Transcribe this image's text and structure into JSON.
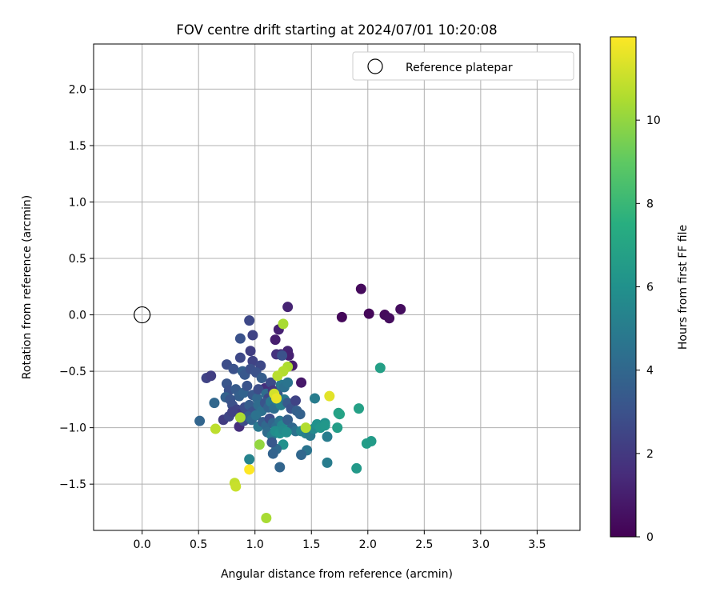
{
  "chart_data": {
    "type": "scatter",
    "title": "FOV centre drift starting at 2024/07/01 10:20:08",
    "xlabel": "Angular distance from reference (arcmin)",
    "ylabel": "Rotation from reference (arcmin)",
    "xlim": [
      -0.43,
      3.88
    ],
    "ylim": [
      -1.91,
      2.4
    ],
    "xticks": [
      "0.0",
      "0.5",
      "1.0",
      "1.5",
      "2.0",
      "2.5",
      "3.0",
      "3.5"
    ],
    "xtick_values": [
      0,
      0.5,
      1,
      1.5,
      2,
      2.5,
      3,
      3.5
    ],
    "yticks": [
      "−1.5",
      "−1.0",
      "−0.5",
      "0.0",
      "0.5",
      "1.0",
      "1.5",
      "2.0"
    ],
    "ytick_values": [
      -1.5,
      -1,
      -0.5,
      0,
      0.5,
      1,
      1.5,
      2
    ],
    "grid": true,
    "legend": {
      "placement": "top-right",
      "label": "Reference platepar"
    },
    "reference_point": {
      "x": 0.0,
      "y": 0.0
    },
    "colorbar": {
      "label": "Hours from first FF file",
      "range": [
        0,
        12
      ],
      "ticks": [
        "0",
        "2",
        "4",
        "6",
        "8",
        "10"
      ],
      "tick_values": [
        0,
        2,
        4,
        6,
        8,
        10
      ],
      "colormap": "viridis"
    },
    "points": [
      {
        "x": 1.94,
        "y": 0.23,
        "c": 0.3
      },
      {
        "x": 1.77,
        "y": -0.02,
        "c": 0.2
      },
      {
        "x": 2.01,
        "y": 0.01,
        "c": 0.2
      },
      {
        "x": 2.15,
        "y": 0.0,
        "c": 0.3
      },
      {
        "x": 2.19,
        "y": -0.03,
        "c": 0.4
      },
      {
        "x": 2.29,
        "y": 0.05,
        "c": 0.4
      },
      {
        "x": 1.29,
        "y": 0.07,
        "c": 1.2
      },
      {
        "x": 0.95,
        "y": -0.05,
        "c": 2.6
      },
      {
        "x": 0.98,
        "y": -0.18,
        "c": 2.4
      },
      {
        "x": 1.21,
        "y": -0.13,
        "c": 1.1
      },
      {
        "x": 1.18,
        "y": -0.22,
        "c": 1.0
      },
      {
        "x": 0.87,
        "y": -0.21,
        "c": 3.0
      },
      {
        "x": 0.96,
        "y": -0.32,
        "c": 2.2
      },
      {
        "x": 1.23,
        "y": -0.35,
        "c": 1.4
      },
      {
        "x": 1.29,
        "y": -0.32,
        "c": 1.2
      },
      {
        "x": 1.3,
        "y": -0.36,
        "c": 1.1
      },
      {
        "x": 1.33,
        "y": -0.45,
        "c": 0.9
      },
      {
        "x": 1.41,
        "y": -0.6,
        "c": 0.8
      },
      {
        "x": 0.87,
        "y": -0.38,
        "c": 2.6
      },
      {
        "x": 0.98,
        "y": -0.41,
        "c": 2.4
      },
      {
        "x": 1.05,
        "y": -0.45,
        "c": 2.6
      },
      {
        "x": 1.19,
        "y": -0.35,
        "c": 1.8
      },
      {
        "x": 1.24,
        "y": -0.36,
        "c": 3.0
      },
      {
        "x": 0.57,
        "y": -0.56,
        "c": 2.4
      },
      {
        "x": 0.61,
        "y": -0.54,
        "c": 2.2
      },
      {
        "x": 0.75,
        "y": -0.44,
        "c": 2.8
      },
      {
        "x": 0.81,
        "y": -0.48,
        "c": 3.0
      },
      {
        "x": 0.89,
        "y": -0.5,
        "c": 3.6
      },
      {
        "x": 0.91,
        "y": -0.53,
        "c": 3.3
      },
      {
        "x": 0.96,
        "y": -0.48,
        "c": 2.9
      },
      {
        "x": 1.01,
        "y": -0.51,
        "c": 3.0
      },
      {
        "x": 1.06,
        "y": -0.56,
        "c": 3.5
      },
      {
        "x": 1.09,
        "y": -0.65,
        "c": 1.6
      },
      {
        "x": 1.14,
        "y": -0.6,
        "c": 2.7
      },
      {
        "x": 0.75,
        "y": -0.61,
        "c": 3.2
      },
      {
        "x": 0.77,
        "y": -0.67,
        "c": 3.0
      },
      {
        "x": 0.83,
        "y": -0.66,
        "c": 3.4
      },
      {
        "x": 0.86,
        "y": -0.72,
        "c": 3.6
      },
      {
        "x": 0.9,
        "y": -0.69,
        "c": 3.8
      },
      {
        "x": 0.93,
        "y": -0.63,
        "c": 3.1
      },
      {
        "x": 0.98,
        "y": -0.71,
        "c": 3.3
      },
      {
        "x": 1.02,
        "y": -0.74,
        "c": 4.0
      },
      {
        "x": 1.03,
        "y": -0.66,
        "c": 2.8
      },
      {
        "x": 1.1,
        "y": -0.7,
        "c": 4.2
      },
      {
        "x": 1.12,
        "y": -0.74,
        "c": 2.6
      },
      {
        "x": 1.16,
        "y": -0.67,
        "c": 1.9
      },
      {
        "x": 1.2,
        "y": -0.7,
        "c": 3.5
      },
      {
        "x": 1.23,
        "y": -0.62,
        "c": 4.8
      },
      {
        "x": 1.26,
        "y": -0.64,
        "c": 4.4
      },
      {
        "x": 1.29,
        "y": -0.6,
        "c": 4.6
      },
      {
        "x": 0.74,
        "y": -0.73,
        "c": 3.7
      },
      {
        "x": 0.78,
        "y": -0.75,
        "c": 3.2
      },
      {
        "x": 0.8,
        "y": -0.8,
        "c": 2.9
      },
      {
        "x": 0.84,
        "y": -0.84,
        "c": 2.4
      },
      {
        "x": 0.87,
        "y": -0.88,
        "c": 1.9
      },
      {
        "x": 0.91,
        "y": -0.82,
        "c": 2.8
      },
      {
        "x": 0.95,
        "y": -0.8,
        "c": 3.5
      },
      {
        "x": 0.98,
        "y": -0.86,
        "c": 3.0
      },
      {
        "x": 1.03,
        "y": -0.8,
        "c": 4.2
      },
      {
        "x": 1.06,
        "y": -0.85,
        "c": 4.4
      },
      {
        "x": 1.09,
        "y": -0.78,
        "c": 3.1
      },
      {
        "x": 1.12,
        "y": -0.82,
        "c": 3.8
      },
      {
        "x": 1.14,
        "y": -0.77,
        "c": 4.7
      },
      {
        "x": 1.17,
        "y": -0.83,
        "c": 4.3
      },
      {
        "x": 1.2,
        "y": -0.76,
        "c": 5.0
      },
      {
        "x": 1.23,
        "y": -0.8,
        "c": 5.2
      },
      {
        "x": 1.26,
        "y": -0.75,
        "c": 4.9
      },
      {
        "x": 1.29,
        "y": -0.78,
        "c": 3.4
      },
      {
        "x": 1.32,
        "y": -0.83,
        "c": 3.0
      },
      {
        "x": 1.36,
        "y": -0.76,
        "c": 2.4
      },
      {
        "x": 1.37,
        "y": -0.85,
        "c": 3.6
      },
      {
        "x": 1.4,
        "y": -0.88,
        "c": 3.7
      },
      {
        "x": 0.64,
        "y": -0.78,
        "c": 4.0
      },
      {
        "x": 0.72,
        "y": -0.93,
        "c": 2.1
      },
      {
        "x": 0.77,
        "y": -0.9,
        "c": 2.5
      },
      {
        "x": 0.8,
        "y": -0.86,
        "c": 2.3
      },
      {
        "x": 0.86,
        "y": -0.99,
        "c": 1.6
      },
      {
        "x": 0.9,
        "y": -0.94,
        "c": 2.7
      },
      {
        "x": 0.94,
        "y": -0.9,
        "c": 3.4
      },
      {
        "x": 0.97,
        "y": -0.93,
        "c": 4.0
      },
      {
        "x": 1.01,
        "y": -0.89,
        "c": 4.5
      },
      {
        "x": 1.03,
        "y": -0.99,
        "c": 4.8
      },
      {
        "x": 1.07,
        "y": -0.95,
        "c": 3.5
      },
      {
        "x": 1.1,
        "y": -0.98,
        "c": 4.1
      },
      {
        "x": 1.13,
        "y": -0.92,
        "c": 2.8
      },
      {
        "x": 1.16,
        "y": -0.96,
        "c": 3.9
      },
      {
        "x": 1.19,
        "y": -0.99,
        "c": 4.3
      },
      {
        "x": 1.22,
        "y": -0.94,
        "c": 4.6
      },
      {
        "x": 1.24,
        "y": -0.98,
        "c": 5.5
      },
      {
        "x": 1.27,
        "y": -1.0,
        "c": 5.6
      },
      {
        "x": 1.29,
        "y": -0.93,
        "c": 3.6
      },
      {
        "x": 1.33,
        "y": -1.0,
        "c": 4.0
      },
      {
        "x": 1.36,
        "y": -1.03,
        "c": 4.5
      },
      {
        "x": 0.51,
        "y": -0.94,
        "c": 3.9
      },
      {
        "x": 1.11,
        "y": -1.04,
        "c": 4.2
      },
      {
        "x": 1.15,
        "y": -1.07,
        "c": 5.0
      },
      {
        "x": 1.18,
        "y": -1.03,
        "c": 5.8
      },
      {
        "x": 1.22,
        "y": -1.05,
        "c": 6.0
      },
      {
        "x": 1.25,
        "y": -1.02,
        "c": 5.7
      },
      {
        "x": 1.28,
        "y": -1.04,
        "c": 5.9
      },
      {
        "x": 1.41,
        "y": -1.03,
        "c": 5.4
      },
      {
        "x": 1.45,
        "y": -1.05,
        "c": 5.2
      },
      {
        "x": 1.49,
        "y": -1.07,
        "c": 4.9
      },
      {
        "x": 1.52,
        "y": -1.01,
        "c": 5.6
      },
      {
        "x": 1.55,
        "y": -0.97,
        "c": 6.0
      },
      {
        "x": 1.58,
        "y": -1.0,
        "c": 6.2
      },
      {
        "x": 1.62,
        "y": -0.96,
        "c": 6.0
      },
      {
        "x": 1.64,
        "y": -1.08,
        "c": 5.0
      },
      {
        "x": 1.62,
        "y": -0.98,
        "c": 6.3
      },
      {
        "x": 1.53,
        "y": -0.74,
        "c": 5.0
      },
      {
        "x": 1.73,
        "y": -1.0,
        "c": 6.6
      },
      {
        "x": 1.74,
        "y": -0.87,
        "c": 6.8
      },
      {
        "x": 1.75,
        "y": -0.88,
        "c": 6.9
      },
      {
        "x": 1.92,
        "y": -0.83,
        "c": 6.8
      },
      {
        "x": 2.11,
        "y": -0.47,
        "c": 6.7
      },
      {
        "x": 1.99,
        "y": -1.14,
        "c": 6.6
      },
      {
        "x": 2.03,
        "y": -1.12,
        "c": 6.5
      },
      {
        "x": 1.9,
        "y": -1.36,
        "c": 6.4
      },
      {
        "x": 1.64,
        "y": -1.31,
        "c": 5.0
      },
      {
        "x": 1.46,
        "y": -1.2,
        "c": 4.6
      },
      {
        "x": 1.41,
        "y": -1.24,
        "c": 4.0
      },
      {
        "x": 1.25,
        "y": -1.15,
        "c": 6.0
      },
      {
        "x": 1.19,
        "y": -1.19,
        "c": 4.1
      },
      {
        "x": 1.15,
        "y": -1.13,
        "c": 3.3
      },
      {
        "x": 1.16,
        "y": -1.23,
        "c": 3.8
      },
      {
        "x": 1.22,
        "y": -1.35,
        "c": 3.9
      },
      {
        "x": 0.95,
        "y": -1.28,
        "c": 5.3
      },
      {
        "x": 1.04,
        "y": -1.15,
        "c": 10.0
      },
      {
        "x": 1.25,
        "y": -0.08,
        "c": 10.4
      },
      {
        "x": 1.29,
        "y": -0.46,
        "c": 10.5
      },
      {
        "x": 1.25,
        "y": -0.5,
        "c": 10.6
      },
      {
        "x": 1.2,
        "y": -0.54,
        "c": 10.7
      },
      {
        "x": 1.17,
        "y": -0.7,
        "c": 11.2
      },
      {
        "x": 1.19,
        "y": -0.74,
        "c": 11.6
      },
      {
        "x": 1.66,
        "y": -0.72,
        "c": 11.5
      },
      {
        "x": 1.45,
        "y": -1.0,
        "c": 10.6
      },
      {
        "x": 0.87,
        "y": -0.91,
        "c": 10.5
      },
      {
        "x": 0.65,
        "y": -1.01,
        "c": 10.8
      },
      {
        "x": 0.82,
        "y": -1.49,
        "c": 10.9
      },
      {
        "x": 0.83,
        "y": -1.52,
        "c": 11.0
      },
      {
        "x": 0.95,
        "y": -1.37,
        "c": 12.0
      },
      {
        "x": 1.1,
        "y": -1.8,
        "c": 10.4
      }
    ]
  }
}
